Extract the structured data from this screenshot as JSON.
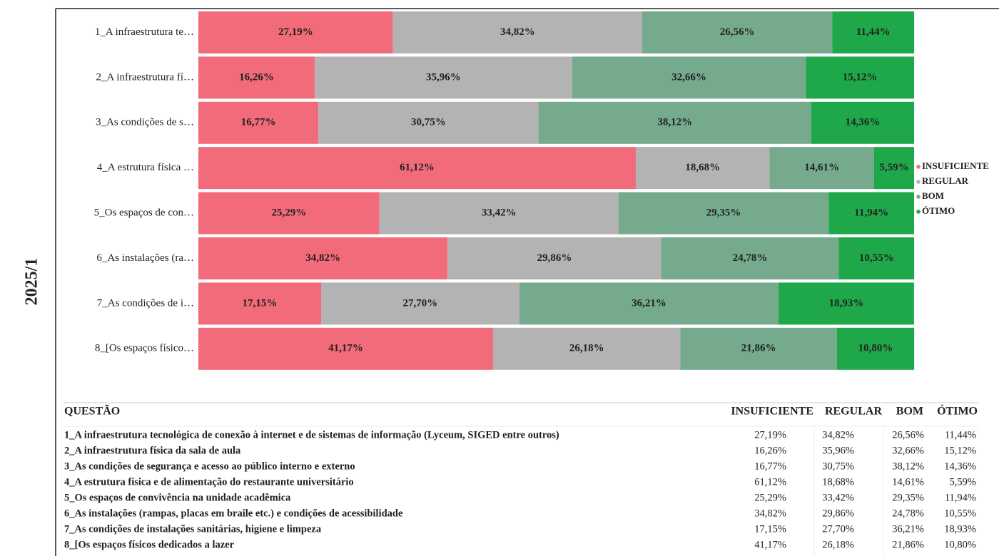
{
  "period": "2025/1",
  "chart_data": {
    "type": "bar",
    "orientation": "horizontal",
    "stacked": true,
    "categories": [
      "1_A infraestrutura te…",
      "2_A infraestrutura fí…",
      "3_As condições de s…",
      "4_A estrutura física …",
      "5_Os espaços de con…",
      "6_As instalações (ra…",
      "7_As condições de i…",
      "8_[Os espaços físico…"
    ],
    "xlim": [
      0,
      100
    ],
    "legend": "right",
    "series": [
      {
        "name": "INSUFICIENTE",
        "color": "#f26b7a",
        "values": [
          27.19,
          16.26,
          16.77,
          61.12,
          25.29,
          34.82,
          17.15,
          41.17
        ],
        "value_labels": [
          "27,19%",
          "16,26%",
          "16,77%",
          "61,12%",
          "25,29%",
          "34,82%",
          "17,15%",
          "41,17%"
        ]
      },
      {
        "name": "REGULAR",
        "color": "#b3b3b3",
        "values": [
          34.82,
          35.96,
          30.75,
          18.68,
          33.42,
          29.86,
          27.7,
          26.18
        ],
        "value_labels": [
          "34,82%",
          "35,96%",
          "30,75%",
          "18,68%",
          "33,42%",
          "29,86%",
          "27,70%",
          "26,18%"
        ]
      },
      {
        "name": "BOM",
        "color": "#75aa8d",
        "values": [
          26.56,
          32.66,
          38.12,
          14.61,
          29.35,
          24.78,
          36.21,
          21.86
        ],
        "value_labels": [
          "26,56%",
          "32,66%",
          "38,12%",
          "14,61%",
          "29,35%",
          "24,78%",
          "36,21%",
          "21,86%"
        ]
      },
      {
        "name": "ÓTIMO",
        "color": "#1fa84a",
        "values": [
          11.44,
          15.12,
          14.36,
          5.59,
          11.94,
          10.55,
          18.93,
          10.8
        ],
        "value_labels": [
          "11,44%",
          "15,12%",
          "14,36%",
          "5,59%",
          "11,94%",
          "10,55%",
          "18,93%",
          "10,80%"
        ]
      }
    ]
  },
  "table": {
    "columns": [
      "QUESTÃO",
      "INSUFICIENTE",
      "REGULAR",
      "BOM",
      "ÓTIMO"
    ],
    "rows": [
      [
        "1_A infraestrutura tecnológica de conexão à internet e de sistemas de informação (Lyceum, SIGED entre outros)",
        "27,19%",
        "34,82%",
        "26,56%",
        "11,44%"
      ],
      [
        "2_A infraestrutura física da sala de aula",
        "16,26%",
        "35,96%",
        "32,66%",
        "15,12%"
      ],
      [
        "3_As condições de segurança e acesso ao público interno e externo",
        "16,77%",
        "30,75%",
        "38,12%",
        "14,36%"
      ],
      [
        "4_A estrutura física e de alimentação do restaurante universitário",
        "61,12%",
        "18,68%",
        "14,61%",
        "5,59%"
      ],
      [
        "5_Os espaços de convivência na unidade acadêmica",
        "25,29%",
        "33,42%",
        "29,35%",
        "11,94%"
      ],
      [
        "6_As instalações (rampas, placas em braile etc.) e condições de acessibilidade",
        "34,82%",
        "29,86%",
        "24,78%",
        "10,55%"
      ],
      [
        "7_As condições de instalações sanitárias, higiene e limpeza",
        "17,15%",
        "27,70%",
        "36,21%",
        "18,93%"
      ],
      [
        "8_[Os espaços físicos dedicados a lazer",
        "41,17%",
        "26,18%",
        "21,86%",
        "10,80%"
      ]
    ]
  }
}
